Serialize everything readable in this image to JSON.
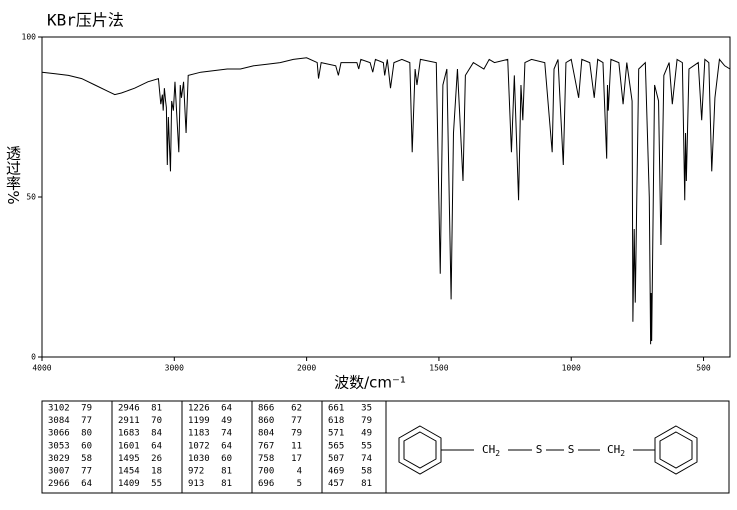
{
  "chart_data": {
    "type": "line",
    "title": "KBr压片法",
    "x_label": "波数/cm⁻¹",
    "y_label": "透过率%",
    "xlim": [
      4000,
      400
    ],
    "ylim": [
      0,
      100
    ],
    "xticks": [
      4000,
      3000,
      2000,
      1500,
      1000,
      500
    ],
    "yticks": [
      0,
      50,
      100
    ],
    "x_scale_break": 2000,
    "color": "#000000",
    "x": [
      4000,
      3900,
      3800,
      3700,
      3600,
      3500,
      3450,
      3400,
      3300,
      3200,
      3120,
      3102,
      3090,
      3084,
      3075,
      3066,
      3060,
      3053,
      3045,
      3029,
      3020,
      3007,
      2995,
      2966,
      2955,
      2946,
      2930,
      2911,
      2895,
      2800,
      2600,
      2500,
      2400,
      2300,
      2200,
      2100,
      2000,
      1960,
      1955,
      1945,
      1890,
      1880,
      1870,
      1810,
      1803,
      1795,
      1760,
      1750,
      1740,
      1710,
      1705,
      1695,
      1683,
      1670,
      1640,
      1610,
      1601,
      1590,
      1583,
      1570,
      1510,
      1495,
      1485,
      1470,
      1454,
      1445,
      1430,
      1409,
      1400,
      1370,
      1330,
      1310,
      1290,
      1240,
      1226,
      1215,
      1199,
      1190,
      1183,
      1175,
      1150,
      1100,
      1072,
      1065,
      1050,
      1030,
      1020,
      1000,
      972,
      960,
      930,
      913,
      900,
      880,
      866,
      863,
      860,
      850,
      820,
      804,
      790,
      770,
      767,
      762,
      758,
      745,
      720,
      705,
      700,
      698,
      696,
      685,
      670,
      661,
      650,
      630,
      618,
      600,
      580,
      571,
      568,
      565,
      555,
      520,
      507,
      495,
      480,
      469,
      460,
      457,
      440,
      420,
      400
    ],
    "values": [
      89,
      88.5,
      88,
      87,
      85,
      83,
      82,
      82.5,
      84,
      86,
      87,
      79,
      82,
      77,
      84,
      80,
      78,
      60,
      75,
      58,
      80,
      77,
      86,
      64,
      85,
      81,
      86,
      70,
      88,
      89,
      90,
      90,
      91,
      91.5,
      92,
      93,
      93.5,
      92,
      87,
      92,
      91,
      88,
      92,
      92,
      90,
      93,
      92,
      89,
      93,
      92,
      88,
      93,
      84,
      92,
      93,
      92,
      64,
      90,
      85,
      93,
      92,
      26,
      85,
      90,
      18,
      70,
      90,
      55,
      88,
      92,
      90,
      93,
      92,
      93,
      64,
      88,
      49,
      85,
      74,
      92,
      93,
      92,
      64,
      90,
      93,
      60,
      92,
      93,
      81,
      93,
      92,
      81,
      93,
      92,
      62,
      85,
      77,
      93,
      92,
      79,
      92,
      80,
      11,
      40,
      17,
      90,
      92,
      50,
      4,
      20,
      5,
      85,
      80,
      35,
      88,
      92,
      79,
      93,
      92,
      49,
      70,
      55,
      90,
      92,
      74,
      93,
      92,
      58,
      75,
      81,
      93,
      91,
      90
    ]
  },
  "peak_table": [
    [
      [
        3102,
        79
      ],
      [
        3084,
        77
      ],
      [
        3066,
        80
      ],
      [
        3053,
        60
      ],
      [
        3029,
        58
      ],
      [
        3007,
        77
      ],
      [
        2966,
        64
      ]
    ],
    [
      [
        2946,
        81
      ],
      [
        2911,
        70
      ],
      [
        1683,
        84
      ],
      [
        1601,
        64
      ],
      [
        1495,
        26
      ],
      [
        1454,
        18
      ],
      [
        1409,
        55
      ]
    ],
    [
      [
        1226,
        64
      ],
      [
        1199,
        49
      ],
      [
        1183,
        74
      ],
      [
        1072,
        64
      ],
      [
        1030,
        60
      ],
      [
        972,
        81
      ],
      [
        913,
        81
      ]
    ],
    [
      [
        866,
        62
      ],
      [
        860,
        77
      ],
      [
        804,
        79
      ],
      [
        767,
        11
      ],
      [
        758,
        17
      ],
      [
        700,
        4
      ],
      [
        696,
        5
      ]
    ],
    [
      [
        661,
        35
      ],
      [
        618,
        79
      ],
      [
        571,
        49
      ],
      [
        565,
        55
      ],
      [
        507,
        74
      ],
      [
        469,
        58
      ],
      [
        457,
        81
      ]
    ]
  ],
  "structure": {
    "groups": [
      {
        "text": "CH",
        "sub": "2"
      },
      {
        "text": "S"
      },
      {
        "text": "S"
      },
      {
        "text": "CH",
        "sub": "2"
      }
    ]
  }
}
